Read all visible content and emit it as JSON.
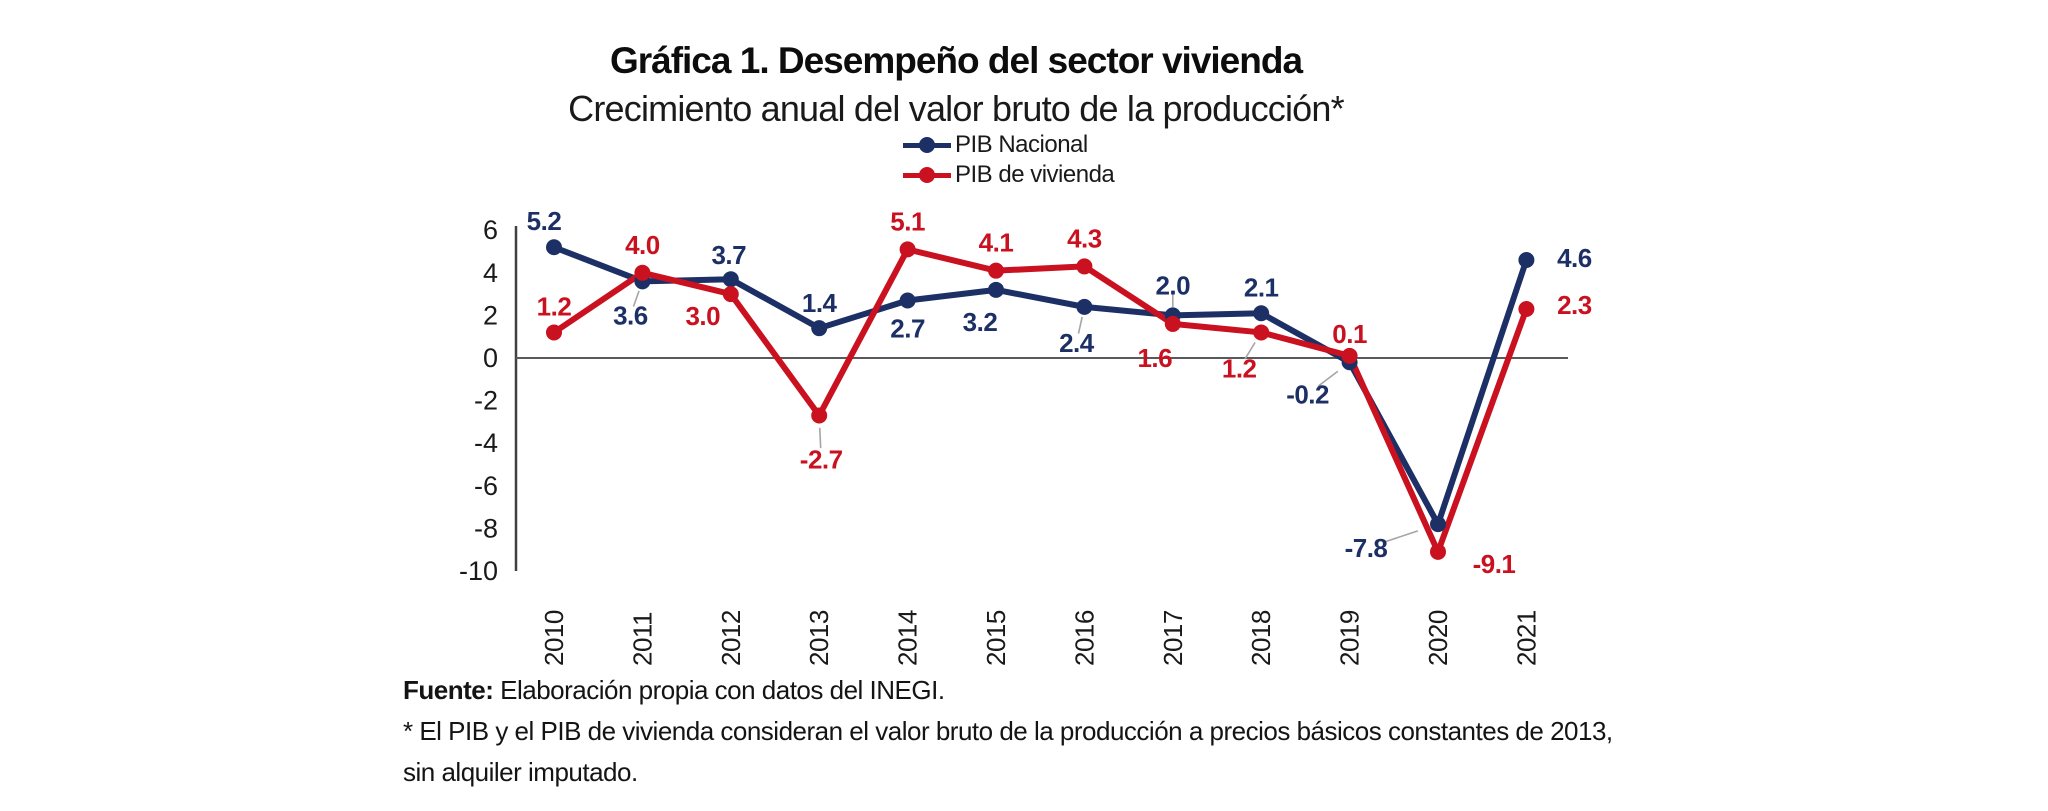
{
  "chart": {
    "title": "Gráfica 1. Desempeño del sector vivienda",
    "subtitle": "Crecimiento anual del valor bruto de la producción*"
  },
  "chart_data": {
    "type": "line",
    "title": "Gráfica 1. Desempeño del sector vivienda",
    "subtitle": "Crecimiento anual del valor bruto de la producción*",
    "categories": [
      "2010",
      "2011",
      "2012",
      "2013",
      "2014",
      "2015",
      "2016",
      "2017",
      "2018",
      "2019",
      "2020",
      "2021"
    ],
    "series": [
      {
        "name": "PIB Nacional",
        "color": "#1d3066",
        "values": [
          5.2,
          3.6,
          3.7,
          1.4,
          2.7,
          3.2,
          2.4,
          2.0,
          2.1,
          -0.2,
          -7.8,
          4.6
        ],
        "label_offsets": [
          {
            "dx": -10,
            "dy": -26
          },
          {
            "dx": -12,
            "dy": 34,
            "leader": true
          },
          {
            "dx": -2,
            "dy": -24
          },
          {
            "dx": 0,
            "dy": -25
          },
          {
            "dx": 0,
            "dy": 28
          },
          {
            "dx": -16,
            "dy": 32
          },
          {
            "dx": -8,
            "dy": 36,
            "leader": true
          },
          {
            "dx": 0,
            "dy": -30,
            "leader": true
          },
          {
            "dx": 0,
            "dy": -26
          },
          {
            "dx": -42,
            "dy": 32,
            "leader": true
          },
          {
            "dx": -72,
            "dy": 24,
            "leader": true
          },
          {
            "dx": 48,
            "dy": -2
          }
        ]
      },
      {
        "name": "PIB de vivienda",
        "color": "#ca1120",
        "values": [
          1.2,
          4.0,
          3.0,
          -2.7,
          5.1,
          4.1,
          4.3,
          1.6,
          1.2,
          0.1,
          -9.1,
          2.3
        ],
        "label_offsets": [
          {
            "dx": 0,
            "dy": -26
          },
          {
            "dx": 0,
            "dy": -28
          },
          {
            "dx": -28,
            "dy": 22
          },
          {
            "dx": 2,
            "dy": 44,
            "leader": true
          },
          {
            "dx": 0,
            "dy": -28
          },
          {
            "dx": 0,
            "dy": -28
          },
          {
            "dx": 0,
            "dy": -28
          },
          {
            "dx": -18,
            "dy": 34
          },
          {
            "dx": -22,
            "dy": 36,
            "leader": true
          },
          {
            "dx": 0,
            "dy": -22
          },
          {
            "dx": 56,
            "dy": 12
          },
          {
            "dx": 48,
            "dy": -4
          }
        ]
      }
    ],
    "ylim": [
      -10,
      6
    ],
    "yticks": [
      6,
      4,
      2,
      0,
      -2,
      -4,
      -6,
      -8,
      -10
    ],
    "grid": false,
    "zero_line": true,
    "legend_position": "top-center",
    "value_decimals": 1,
    "colors": {
      "axis": "#414042",
      "zero_line": "#58595b",
      "tick_text": "#1a1a1a",
      "leader_line": "#a7a5a5"
    }
  },
  "footer": {
    "source_label": "Fuente:",
    "source_text": " Elaboración propia con datos del INEGI.",
    "note_line1": "* El PIB y el PIB de vivienda consideran el valor bruto de la producción a precios básicos constantes de 2013,",
    "note_line2": "sin alquiler imputado."
  }
}
